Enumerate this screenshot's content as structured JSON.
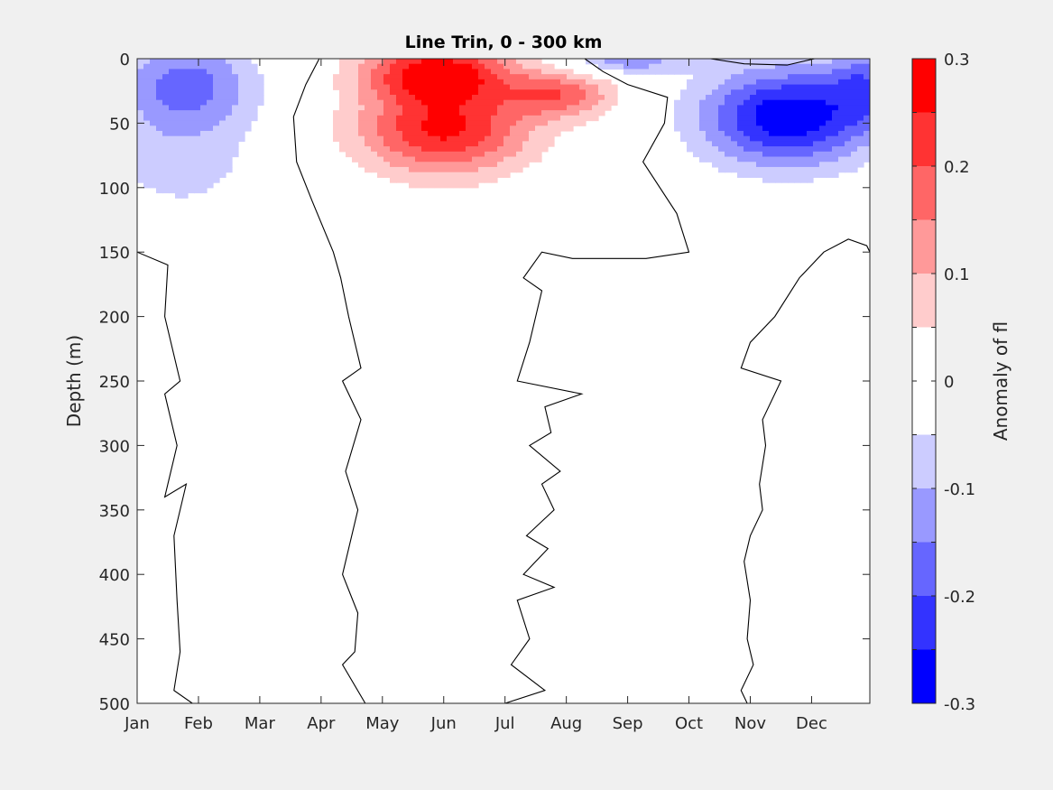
{
  "chart_data": {
    "type": "heatmap",
    "subtype": "filled-contour",
    "title": "Line Trin, 0 - 300 km",
    "xlabel": "",
    "ylabel": "Depth (m)",
    "x_tick_labels": [
      "Jan",
      "Feb",
      "Mar",
      "Apr",
      "May",
      "Jun",
      "Jul",
      "Aug",
      "Sep",
      "Oct",
      "Nov",
      "Dec"
    ],
    "x_ticks_month": [
      1,
      2,
      3,
      4,
      5,
      6,
      7,
      8,
      9,
      10,
      11,
      12
    ],
    "xlim": [
      1,
      12.95
    ],
    "y_ticks": [
      0,
      50,
      100,
      150,
      200,
      250,
      300,
      350,
      400,
      450,
      500
    ],
    "ylim": [
      0,
      500
    ],
    "y_reversed": true,
    "grid": false,
    "colorbar": {
      "label": "Anomaly of fl",
      "ticks": [
        -0.3,
        -0.2,
        -0.1,
        0,
        0.1,
        0.2,
        0.3
      ],
      "tick_labels": [
        "-0.3",
        "-0.2",
        "-0.1",
        "0",
        "0.1",
        "0.2",
        "0.3"
      ],
      "range": [
        -0.3,
        0.3
      ],
      "levels": [
        {
          "lo": -0.3,
          "hi": -0.25,
          "color": "#0000ff"
        },
        {
          "lo": -0.25,
          "hi": -0.2,
          "color": "#3333ff"
        },
        {
          "lo": -0.2,
          "hi": -0.15,
          "color": "#6666ff"
        },
        {
          "lo": -0.15,
          "hi": -0.1,
          "color": "#9999ff"
        },
        {
          "lo": -0.1,
          "hi": -0.05,
          "color": "#ccccff"
        },
        {
          "lo": -0.05,
          "hi": 0,
          "color": "#ffffff"
        },
        {
          "lo": 0,
          "hi": 0.05,
          "color": "#ffffff"
        },
        {
          "lo": 0.05,
          "hi": 0.1,
          "color": "#ffcccc"
        },
        {
          "lo": 0.1,
          "hi": 0.15,
          "color": "#ff9999"
        },
        {
          "lo": 0.15,
          "hi": 0.2,
          "color": "#ff6666"
        },
        {
          "lo": 0.2,
          "hi": 0.25,
          "color": "#ff3333"
        },
        {
          "lo": 0.25,
          "hi": 0.3,
          "color": "#ff0000"
        }
      ]
    },
    "anomaly_features": [
      {
        "name": "surface-negative-jan-mar",
        "month": 1.8,
        "depth": 20,
        "peak": -0.17,
        "month_halfwidth": 1.1,
        "depth_halfwidth": 35
      },
      {
        "name": "subsurface-negative-jan-feb",
        "month": 1.7,
        "depth": 80,
        "peak": -0.07,
        "month_halfwidth": 1.3,
        "depth_halfwidth": 45
      },
      {
        "name": "surface-positive-may-jun",
        "month": 5.9,
        "depth": 10,
        "peak": 0.27,
        "month_halfwidth": 1.2,
        "depth_halfwidth": 22
      },
      {
        "name": "subsurface-positive-may-jul",
        "month": 6.0,
        "depth": 55,
        "peak": 0.26,
        "month_halfwidth": 1.4,
        "depth_halfwidth": 35
      },
      {
        "name": "positive-lobe-jul-aug",
        "month": 7.9,
        "depth": 28,
        "peak": 0.17,
        "month_halfwidth": 0.9,
        "depth_halfwidth": 18
      },
      {
        "name": "surface-negative-sep",
        "month": 9.0,
        "depth": 2,
        "peak": -0.13,
        "month_halfwidth": 0.9,
        "depth_halfwidth": 10
      },
      {
        "name": "subsurface-negative-nov-dec",
        "month": 11.6,
        "depth": 45,
        "peak": -0.29,
        "month_halfwidth": 1.4,
        "depth_halfwidth": 38
      },
      {
        "name": "surface-negative-dec",
        "month": 12.9,
        "depth": 20,
        "peak": -0.14,
        "month_halfwidth": 0.6,
        "depth_halfwidth": 30
      }
    ],
    "zero_contours": [
      {
        "name": "zero-contour-jan",
        "points": [
          [
            1.0,
            150
          ],
          [
            1.5,
            160
          ],
          [
            1.45,
            200
          ],
          [
            1.7,
            250
          ],
          [
            1.45,
            260
          ],
          [
            1.65,
            300
          ],
          [
            1.45,
            340
          ],
          [
            1.8,
            330
          ],
          [
            1.6,
            370
          ],
          [
            1.65,
            420
          ],
          [
            1.7,
            460
          ],
          [
            1.6,
            490
          ],
          [
            1.9,
            500
          ]
        ]
      },
      {
        "name": "zero-contour-mar-apr",
        "points": [
          [
            3.97,
            0
          ],
          [
            3.75,
            20
          ],
          [
            3.55,
            45
          ],
          [
            3.6,
            80
          ],
          [
            3.85,
            110
          ],
          [
            4.2,
            150
          ],
          [
            4.32,
            170
          ],
          [
            4.45,
            200
          ],
          [
            4.65,
            240
          ],
          [
            4.35,
            250
          ],
          [
            4.65,
            280
          ],
          [
            4.4,
            320
          ],
          [
            4.6,
            350
          ],
          [
            4.35,
            400
          ],
          [
            4.6,
            430
          ],
          [
            4.55,
            460
          ],
          [
            4.35,
            470
          ],
          [
            4.72,
            500
          ]
        ]
      },
      {
        "name": "zero-contour-jul-sep",
        "points": [
          [
            7.0,
            500
          ],
          [
            7.65,
            490
          ],
          [
            7.1,
            470
          ],
          [
            7.4,
            450
          ],
          [
            7.2,
            420
          ],
          [
            7.8,
            410
          ],
          [
            7.3,
            400
          ],
          [
            7.7,
            380
          ],
          [
            7.35,
            370
          ],
          [
            7.8,
            350
          ],
          [
            7.6,
            330
          ],
          [
            7.9,
            320
          ],
          [
            7.4,
            300
          ],
          [
            7.75,
            290
          ],
          [
            7.65,
            270
          ],
          [
            8.25,
            260
          ],
          [
            7.2,
            250
          ],
          [
            7.4,
            220
          ],
          [
            7.6,
            180
          ],
          [
            7.3,
            170
          ],
          [
            7.6,
            150
          ],
          [
            8.1,
            155
          ],
          [
            9.3,
            155
          ],
          [
            10.0,
            150
          ],
          [
            9.8,
            120
          ],
          [
            9.25,
            80
          ],
          [
            9.6,
            50
          ],
          [
            9.65,
            30
          ],
          [
            9.0,
            20
          ],
          [
            8.6,
            10
          ],
          [
            8.3,
            0
          ]
        ]
      },
      {
        "name": "zero-contour-nov-dec",
        "points": [
          [
            10.95,
            500
          ],
          [
            10.85,
            490
          ],
          [
            11.05,
            470
          ],
          [
            10.95,
            450
          ],
          [
            11.0,
            420
          ],
          [
            10.9,
            390
          ],
          [
            11.0,
            370
          ],
          [
            11.2,
            350
          ],
          [
            11.15,
            330
          ],
          [
            11.25,
            300
          ],
          [
            11.2,
            280
          ],
          [
            11.5,
            250
          ],
          [
            10.85,
            240
          ],
          [
            11.0,
            220
          ],
          [
            11.4,
            200
          ],
          [
            11.8,
            170
          ],
          [
            12.2,
            150
          ],
          [
            12.6,
            140
          ],
          [
            12.9,
            145
          ],
          [
            12.95,
            150
          ]
        ]
      },
      {
        "name": "zero-contour-oct-dec-surface",
        "points": [
          [
            10.35,
            0
          ],
          [
            10.9,
            4
          ],
          [
            11.6,
            5
          ],
          [
            12.05,
            0
          ]
        ]
      }
    ]
  }
}
